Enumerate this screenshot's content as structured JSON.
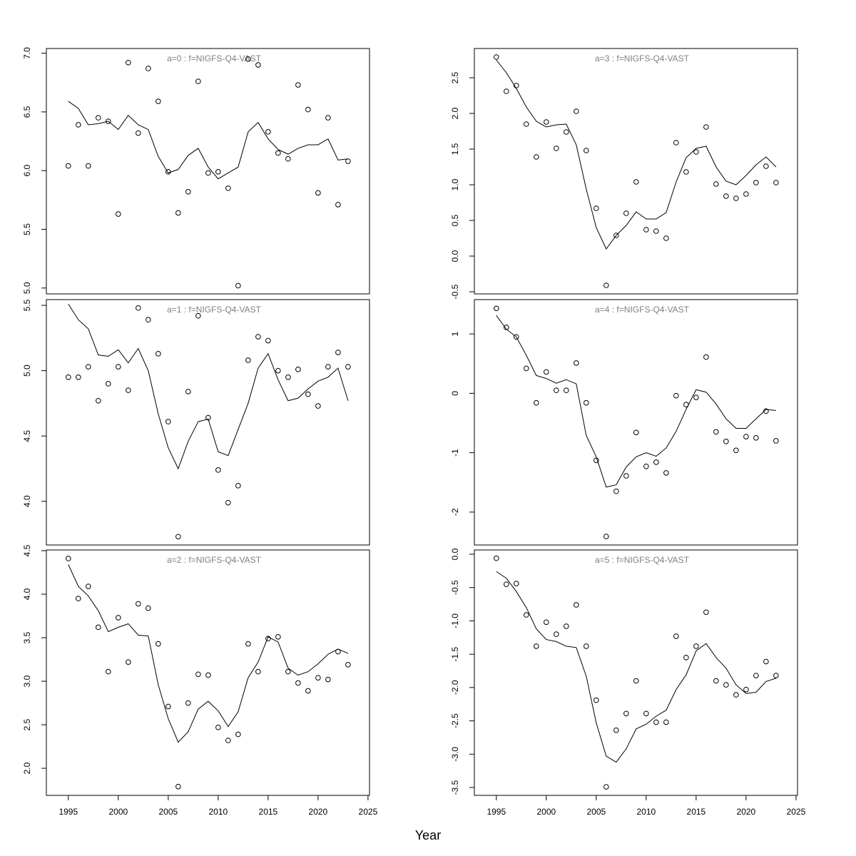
{
  "xlabel": "Year",
  "chart_data": [
    {
      "type": "scatter",
      "title": "a=0  :  f=NIGFS-Q4-VAST",
      "x": [
        1995,
        1996,
        1997,
        1998,
        1999,
        2000,
        2001,
        2002,
        2003,
        2004,
        2005,
        2006,
        2007,
        2008,
        2009,
        2010,
        2011,
        2012,
        2013,
        2014,
        2015,
        2016,
        2017,
        2018,
        2019,
        2020,
        2021,
        2022,
        2023
      ],
      "series": [
        {
          "style": "points",
          "color": "#000000",
          "values": [
            6.04,
            6.39,
            6.04,
            6.45,
            6.42,
            5.63,
            6.92,
            6.32,
            6.87,
            6.59,
            5.99,
            5.64,
            5.82,
            6.76,
            5.98,
            5.99,
            5.85,
            5.02,
            6.95,
            6.9,
            6.33,
            6.15,
            6.1,
            6.73,
            6.52,
            5.81,
            6.45,
            5.71,
            6.08
          ]
        },
        {
          "style": "line",
          "color": "#000000",
          "values": [
            6.59,
            6.53,
            6.39,
            6.4,
            6.42,
            6.35,
            6.47,
            6.39,
            6.35,
            6.12,
            5.98,
            6.01,
            6.13,
            6.19,
            6.03,
            5.93,
            5.98,
            6.03,
            6.33,
            6.41,
            6.27,
            6.18,
            6.14,
            6.19,
            6.22,
            6.22,
            6.27,
            6.09,
            6.1
          ]
        }
      ],
      "xlim": [
        1992.8,
        2025.15
      ],
      "ylim": [
        4.95,
        7.04
      ],
      "yticks": [
        {
          "value": 5,
          "label": "5.0"
        },
        {
          "value": 5.5,
          "label": "5.5"
        },
        {
          "value": 6,
          "label": "6.0"
        },
        {
          "value": 6.5,
          "label": "6.5"
        },
        {
          "value": 7,
          "label": "7.0"
        }
      ]
    },
    {
      "type": "scatter",
      "title": "a=1  :  f=NIGFS-Q4-VAST",
      "x": [
        1995,
        1996,
        1997,
        1998,
        1999,
        2000,
        2001,
        2002,
        2003,
        2004,
        2005,
        2006,
        2007,
        2008,
        2009,
        2010,
        2011,
        2012,
        2013,
        2014,
        2015,
        2016,
        2017,
        2018,
        2019,
        2020,
        2021,
        2022,
        2023
      ],
      "series": [
        {
          "style": "points",
          "color": "#000000",
          "values": [
            4.95,
            4.95,
            5.03,
            4.77,
            4.9,
            5.03,
            4.85,
            5.48,
            5.39,
            5.13,
            4.61,
            3.73,
            4.84,
            5.42,
            4.64,
            4.24,
            3.99,
            4.12,
            5.08,
            5.26,
            5.23,
            5.0,
            4.95,
            5.01,
            4.82,
            4.73,
            5.03,
            5.14,
            5.03
          ]
        },
        {
          "style": "line",
          "color": "#000000",
          "values": [
            5.51,
            5.39,
            5.32,
            5.12,
            5.11,
            5.16,
            5.06,
            5.17,
            5.0,
            4.67,
            4.41,
            4.25,
            4.46,
            4.61,
            4.63,
            4.38,
            4.35,
            4.55,
            4.75,
            5.02,
            5.13,
            4.93,
            4.77,
            4.79,
            4.86,
            4.92,
            4.95,
            5.02,
            4.77
          ]
        }
      ],
      "xlim": [
        1992.8,
        2025.15
      ],
      "ylim": [
        3.666,
        5.544
      ],
      "yticks": [
        {
          "value": 4,
          "label": "4.0"
        },
        {
          "value": 4.5,
          "label": "4.5"
        },
        {
          "value": 5,
          "label": "5.0"
        },
        {
          "value": 5.5,
          "label": "5.5"
        }
      ]
    },
    {
      "type": "scatter",
      "title": "a=2  :  f=NIGFS-Q4-VAST",
      "x": [
        1995,
        1996,
        1997,
        1998,
        1999,
        2000,
        2001,
        2002,
        2003,
        2004,
        2005,
        2006,
        2007,
        2008,
        2009,
        2010,
        2011,
        2012,
        2013,
        2014,
        2015,
        2016,
        2017,
        2018,
        2019,
        2020,
        2021,
        2022,
        2023
      ],
      "series": [
        {
          "style": "points",
          "color": "#000000",
          "values": [
            4.41,
            3.95,
            4.09,
            3.62,
            3.11,
            3.73,
            3.22,
            3.89,
            3.84,
            3.43,
            2.71,
            1.79,
            2.75,
            3.08,
            3.07,
            2.47,
            2.32,
            2.39,
            3.43,
            3.11,
            3.49,
            3.51,
            3.11,
            2.98,
            2.89,
            3.04,
            3.02,
            3.34,
            3.19
          ]
        },
        {
          "style": "line",
          "color": "#000000",
          "values": [
            4.34,
            4.09,
            3.98,
            3.81,
            3.57,
            3.62,
            3.66,
            3.53,
            3.52,
            2.96,
            2.57,
            2.3,
            2.42,
            2.68,
            2.77,
            2.66,
            2.48,
            2.65,
            3.04,
            3.22,
            3.51,
            3.45,
            3.15,
            3.07,
            3.11,
            3.2,
            3.31,
            3.37,
            3.32
          ]
        }
      ],
      "xlim": [
        1992.8,
        2025.15
      ],
      "ylim": [
        1.689,
        4.508
      ],
      "xticks": [
        1995,
        2000,
        2005,
        2010,
        2015,
        2020,
        2025
      ],
      "yticks": [
        {
          "value": 2,
          "label": "2.0"
        },
        {
          "value": 2.5,
          "label": "2.5"
        },
        {
          "value": 3,
          "label": "3.0"
        },
        {
          "value": 3.5,
          "label": "3.5"
        },
        {
          "value": 4,
          "label": "4.0"
        },
        {
          "value": 4.5,
          "label": "4.5"
        }
      ]
    },
    {
      "type": "scatter",
      "title": "a=3  :  f=NIGFS-Q4-VAST",
      "x": [
        1995,
        1996,
        1997,
        1998,
        1999,
        2000,
        2001,
        2002,
        2003,
        2004,
        2005,
        2006,
        2007,
        2008,
        2009,
        2010,
        2011,
        2012,
        2013,
        2014,
        2015,
        2016,
        2017,
        2018,
        2019,
        2020,
        2021,
        2022,
        2023
      ],
      "series": [
        {
          "style": "points",
          "color": "#000000",
          "values": [
            2.79,
            2.31,
            2.39,
            1.85,
            1.39,
            1.88,
            1.51,
            1.74,
            2.03,
            1.48,
            0.67,
            -0.41,
            0.29,
            0.6,
            1.04,
            0.37,
            0.35,
            0.25,
            1.59,
            1.18,
            1.46,
            1.81,
            1.01,
            0.84,
            0.81,
            0.87,
            1.03,
            1.26,
            1.03
          ]
        },
        {
          "style": "line",
          "color": "#000000",
          "values": [
            2.75,
            2.57,
            2.35,
            2.09,
            1.89,
            1.81,
            1.84,
            1.85,
            1.56,
            0.94,
            0.4,
            0.1,
            0.29,
            0.43,
            0.62,
            0.52,
            0.52,
            0.61,
            1.04,
            1.38,
            1.51,
            1.54,
            1.25,
            1.05,
            1.0,
            1.13,
            1.28,
            1.39,
            1.25
          ]
        }
      ],
      "xlim": [
        1992.8,
        2025.15
      ],
      "ylim": [
        -0.53,
        2.91
      ],
      "yticks": [
        {
          "value": -0.5,
          "label": "-0.5"
        },
        {
          "value": 0,
          "label": "0.0"
        },
        {
          "value": 0.5,
          "label": "0.5"
        },
        {
          "value": 1,
          "label": "1.0"
        },
        {
          "value": 1.5,
          "label": "1.5"
        },
        {
          "value": 2,
          "label": "2.0"
        },
        {
          "value": 2.5,
          "label": "2.5"
        }
      ]
    },
    {
      "type": "scatter",
      "title": "a=4  :  f=NIGFS-Q4-VAST",
      "x": [
        1995,
        1996,
        1997,
        1998,
        1999,
        2000,
        2001,
        2002,
        2003,
        2004,
        2005,
        2006,
        2007,
        2008,
        2009,
        2010,
        2011,
        2012,
        2013,
        2014,
        2015,
        2016,
        2017,
        2018,
        2019,
        2020,
        2021,
        2022,
        2023
      ],
      "series": [
        {
          "style": "points",
          "color": "#000000",
          "values": [
            1.43,
            1.11,
            0.95,
            0.42,
            -0.16,
            0.36,
            0.05,
            0.05,
            0.51,
            -0.16,
            -1.13,
            -2.41,
            -1.65,
            -1.39,
            -0.66,
            -1.23,
            -1.16,
            -1.34,
            -0.04,
            -0.19,
            -0.07,
            0.61,
            -0.65,
            -0.81,
            -0.96,
            -0.73,
            -0.75,
            -0.3,
            -0.8
          ]
        },
        {
          "style": "line",
          "color": "#000000",
          "values": [
            1.31,
            1.08,
            0.95,
            0.64,
            0.3,
            0.25,
            0.17,
            0.23,
            0.16,
            -0.71,
            -1.07,
            -1.58,
            -1.54,
            -1.24,
            -1.07,
            -1.0,
            -1.06,
            -0.92,
            -0.64,
            -0.27,
            0.06,
            0.02,
            -0.18,
            -0.43,
            -0.59,
            -0.59,
            -0.43,
            -0.27,
            -0.29
          ]
        }
      ],
      "xlim": [
        1992.8,
        2025.15
      ],
      "ylim": [
        -2.554,
        1.578
      ],
      "yticks": [
        -2,
        -1,
        0,
        1
      ]
    },
    {
      "type": "scatter",
      "title": "a=5  :  f=NIGFS-Q4-VAST",
      "x": [
        1995,
        1996,
        1997,
        1998,
        1999,
        2000,
        2001,
        2002,
        2003,
        2004,
        2005,
        2006,
        2007,
        2008,
        2009,
        2010,
        2011,
        2012,
        2013,
        2014,
        2015,
        2016,
        2017,
        2018,
        2019,
        2020,
        2021,
        2022,
        2023
      ],
      "series": [
        {
          "style": "points",
          "color": "#000000",
          "values": [
            -0.06,
            -0.45,
            -0.44,
            -0.91,
            -1.38,
            -1.02,
            -1.2,
            -1.08,
            -0.76,
            -1.38,
            -2.19,
            -3.49,
            -2.64,
            -2.39,
            -1.9,
            -2.39,
            -2.52,
            -2.52,
            -1.23,
            -1.55,
            -1.38,
            -0.87,
            -1.9,
            -1.96,
            -2.11,
            -2.03,
            -1.82,
            -1.61,
            -1.82
          ]
        },
        {
          "style": "line",
          "color": "#000000",
          "values": [
            -0.26,
            -0.36,
            -0.56,
            -0.8,
            -1.12,
            -1.28,
            -1.31,
            -1.38,
            -1.4,
            -1.83,
            -2.53,
            -3.03,
            -3.12,
            -2.92,
            -2.62,
            -2.55,
            -2.43,
            -2.34,
            -2.03,
            -1.81,
            -1.45,
            -1.34,
            -1.55,
            -1.71,
            -1.96,
            -2.09,
            -2.07,
            -1.91,
            -1.86
          ]
        }
      ],
      "xlim": [
        1992.8,
        2025.15
      ],
      "ylim": [
        -3.618,
        0.064
      ],
      "xticks": [
        1995,
        2000,
        2005,
        2010,
        2015,
        2020,
        2025
      ],
      "yticks": [
        {
          "value": -3.5,
          "label": "-3.5"
        },
        {
          "value": -3,
          "label": "-3.0"
        },
        {
          "value": -2.5,
          "label": "-2.5"
        },
        {
          "value": -2,
          "label": "-2.0"
        },
        {
          "value": -1.5,
          "label": "-1.5"
        },
        {
          "value": -1,
          "label": "-1.0"
        },
        {
          "value": -0.5,
          "label": "-0.5"
        },
        {
          "value": 0,
          "label": "0.0"
        }
      ]
    }
  ]
}
